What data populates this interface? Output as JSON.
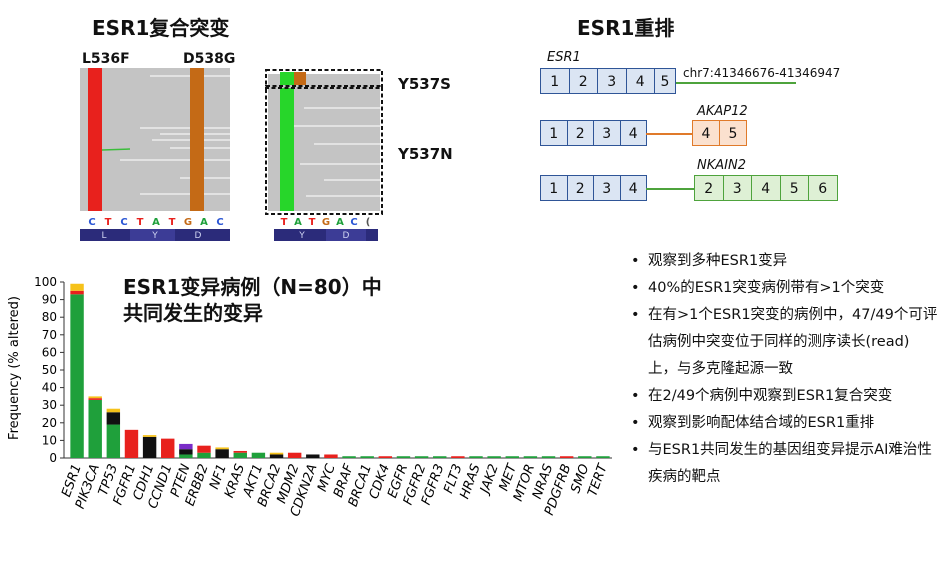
{
  "panels": {
    "compound_title": "ESR1复合突变",
    "rearr_title": "ESR1重排",
    "label_l536f": "L536F",
    "label_d538g": "D538G",
    "label_y537s": "Y537S",
    "label_y537n": "Y537N",
    "seq_left": [
      "C",
      "T",
      "C",
      "T",
      "A",
      "T",
      "G",
      "A",
      "C"
    ],
    "aa_left": [
      "L",
      "Y",
      "D"
    ],
    "seq_right": [
      "T",
      "A",
      "T",
      "G",
      "A",
      "C",
      "("
    ],
    "aa_right": [
      "Y",
      "D"
    ]
  },
  "rearr": {
    "esr1_name": "ESR1",
    "esr1_exons": [
      "1",
      "2",
      "3",
      "4",
      "5"
    ],
    "esr1_coord": "chr7:41346676-41346947",
    "akap_name": "AKAP12",
    "akap_left": [
      "1",
      "2",
      "3",
      "4"
    ],
    "akap_right": [
      "4",
      "5"
    ],
    "nkain_name": "NKAIN2",
    "nkain_left": [
      "1",
      "2",
      "3",
      "4"
    ],
    "nkain_right": [
      "2",
      "3",
      "4",
      "5",
      "6"
    ]
  },
  "chart_data": {
    "type": "bar",
    "title": "ESR1变异病例（N=80）中共同发生的变异",
    "title_line1": "ESR1变异病例（N=80）中",
    "title_line2": "共同发生的变异",
    "ylabel": "Frequency (% altered)",
    "ylim": [
      0,
      100
    ],
    "yticks": [
      0,
      10,
      20,
      30,
      40,
      50,
      60,
      70,
      80,
      90,
      100
    ],
    "categories": [
      "ESR1",
      "PIK3CA",
      "TP53",
      "FGFR1",
      "CDH1",
      "CCND1",
      "PTEN",
      "ERBB2",
      "NF1",
      "KRAS",
      "AKT1",
      "BRCA2",
      "MDM2",
      "CDKN2A",
      "MYC",
      "BRAF",
      "BRCA1",
      "CDK4",
      "EGFR",
      "FGFR2",
      "FGFR3",
      "FLT3",
      "HRAS",
      "JAK2",
      "MET",
      "MTOR",
      "NRAS",
      "PDGFRB",
      "SMO",
      "TERT"
    ],
    "stacks": [
      [
        {
          "c": "#1fa03b",
          "v": 93
        },
        {
          "c": "#e8211d",
          "v": 2
        },
        {
          "c": "#f6c21a",
          "v": 4
        }
      ],
      [
        {
          "c": "#1fa03b",
          "v": 33
        },
        {
          "c": "#e8211d",
          "v": 1
        },
        {
          "c": "#f6c21a",
          "v": 1
        }
      ],
      [
        {
          "c": "#1fa03b",
          "v": 19
        },
        {
          "c": "#111111",
          "v": 7
        },
        {
          "c": "#f6c21a",
          "v": 2
        }
      ],
      [
        {
          "c": "#e8211d",
          "v": 16
        }
      ],
      [
        {
          "c": "#111111",
          "v": 12
        },
        {
          "c": "#f6c21a",
          "v": 1
        }
      ],
      [
        {
          "c": "#e8211d",
          "v": 11
        }
      ],
      [
        {
          "c": "#1fa03b",
          "v": 2
        },
        {
          "c": "#111111",
          "v": 3
        },
        {
          "c": "#7a2cc8",
          "v": 3
        }
      ],
      [
        {
          "c": "#1fa03b",
          "v": 3
        },
        {
          "c": "#e8211d",
          "v": 4
        }
      ],
      [
        {
          "c": "#111111",
          "v": 5
        },
        {
          "c": "#f6c21a",
          "v": 1
        }
      ],
      [
        {
          "c": "#1fa03b",
          "v": 3
        },
        {
          "c": "#e8211d",
          "v": 1
        }
      ],
      [
        {
          "c": "#1fa03b",
          "v": 3
        }
      ],
      [
        {
          "c": "#111111",
          "v": 2
        },
        {
          "c": "#f6c21a",
          "v": 1
        }
      ],
      [
        {
          "c": "#e8211d",
          "v": 3
        }
      ],
      [
        {
          "c": "#111111",
          "v": 2
        }
      ],
      [
        {
          "c": "#e8211d",
          "v": 2
        }
      ],
      [
        {
          "c": "#1fa03b",
          "v": 1
        }
      ],
      [
        {
          "c": "#1fa03b",
          "v": 1
        }
      ],
      [
        {
          "c": "#e8211d",
          "v": 1
        }
      ],
      [
        {
          "c": "#1fa03b",
          "v": 1
        }
      ],
      [
        {
          "c": "#1fa03b",
          "v": 1
        }
      ],
      [
        {
          "c": "#1fa03b",
          "v": 1
        }
      ],
      [
        {
          "c": "#e8211d",
          "v": 1
        }
      ],
      [
        {
          "c": "#1fa03b",
          "v": 1
        }
      ],
      [
        {
          "c": "#1fa03b",
          "v": 1
        }
      ],
      [
        {
          "c": "#1fa03b",
          "v": 1
        }
      ],
      [
        {
          "c": "#1fa03b",
          "v": 1
        }
      ],
      [
        {
          "c": "#1fa03b",
          "v": 1
        }
      ],
      [
        {
          "c": "#e8211d",
          "v": 1
        }
      ],
      [
        {
          "c": "#1fa03b",
          "v": 1
        }
      ],
      [
        {
          "c": "#1fa03b",
          "v": 1
        }
      ]
    ]
  },
  "bullets": [
    "观察到多种ESR1变异",
    "40%的ESR1突变病例带有>1个突变",
    "在有>1个ESR1突变的病例中，47/49个可评估病例中突变位于同样的测序读长(read)上，与多克隆起源一致",
    "在2/49个病例中观察到ESR1复合突变",
    "观察到影响配体结合域的ESR1重排",
    "与ESR1共同发生的基因组变异提示AI难治性疾病的靶点"
  ],
  "bullet_dot": "•"
}
